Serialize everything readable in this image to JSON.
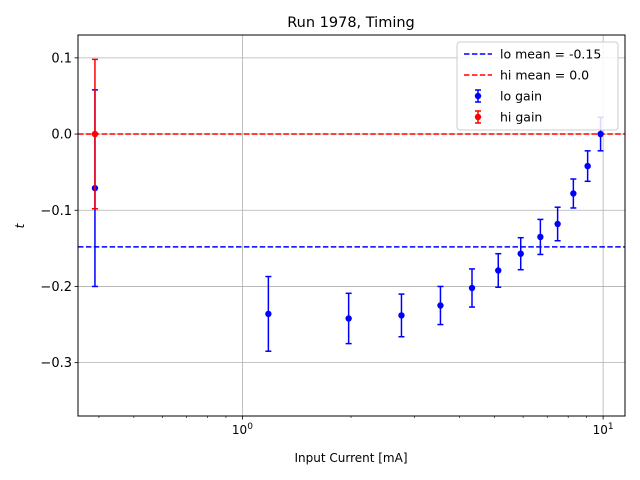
{
  "chart_data": {
    "type": "scatter",
    "title": "Run 1978, Timing",
    "xlabel": "Input Current [mA]",
    "ylabel": "t",
    "xscale": "log",
    "xlim": [
      0.35,
      11.5
    ],
    "ylim": [
      -0.37,
      0.13
    ],
    "grid": true,
    "legend_position": "top-right",
    "yticks": [
      {
        "value": 0.1,
        "label": "0.1"
      },
      {
        "value": 0.0,
        "label": "0.0"
      },
      {
        "value": -0.1,
        "label": "−0.1"
      },
      {
        "value": -0.2,
        "label": "−0.2"
      },
      {
        "value": -0.3,
        "label": "−0.3"
      }
    ],
    "xticks": [
      {
        "value": 1,
        "label": "10^0"
      },
      {
        "value": 10,
        "label": "10^1"
      }
    ],
    "hlines": [
      {
        "name": "lo mean = -0.15",
        "value": -0.148,
        "color": "#0000ff"
      },
      {
        "name": "hi mean = 0.0",
        "value": 0.0,
        "color": "#ff0000"
      }
    ],
    "series": [
      {
        "name": "lo gain",
        "color": "#0000ff",
        "points": [
          {
            "x": 0.39,
            "y": -0.071,
            "err": 0.129
          },
          {
            "x": 1.18,
            "y": -0.236,
            "err": 0.049
          },
          {
            "x": 1.97,
            "y": -0.242,
            "err": 0.033
          },
          {
            "x": 2.76,
            "y": -0.238,
            "err": 0.028
          },
          {
            "x": 3.54,
            "y": -0.225,
            "err": 0.025
          },
          {
            "x": 4.33,
            "y": -0.202,
            "err": 0.025
          },
          {
            "x": 5.12,
            "y": -0.179,
            "err": 0.022
          },
          {
            "x": 5.91,
            "y": -0.157,
            "err": 0.021
          },
          {
            "x": 6.7,
            "y": -0.135,
            "err": 0.023
          },
          {
            "x": 7.48,
            "y": -0.118,
            "err": 0.022
          },
          {
            "x": 8.27,
            "y": -0.078,
            "err": 0.019
          },
          {
            "x": 9.06,
            "y": -0.042,
            "err": 0.02
          },
          {
            "x": 9.84,
            "y": 0.0,
            "err": 0.022
          }
        ]
      },
      {
        "name": "hi gain",
        "color": "#ff0000",
        "points": [
          {
            "x": 0.39,
            "y": 0.0,
            "err": 0.098
          }
        ]
      }
    ]
  }
}
